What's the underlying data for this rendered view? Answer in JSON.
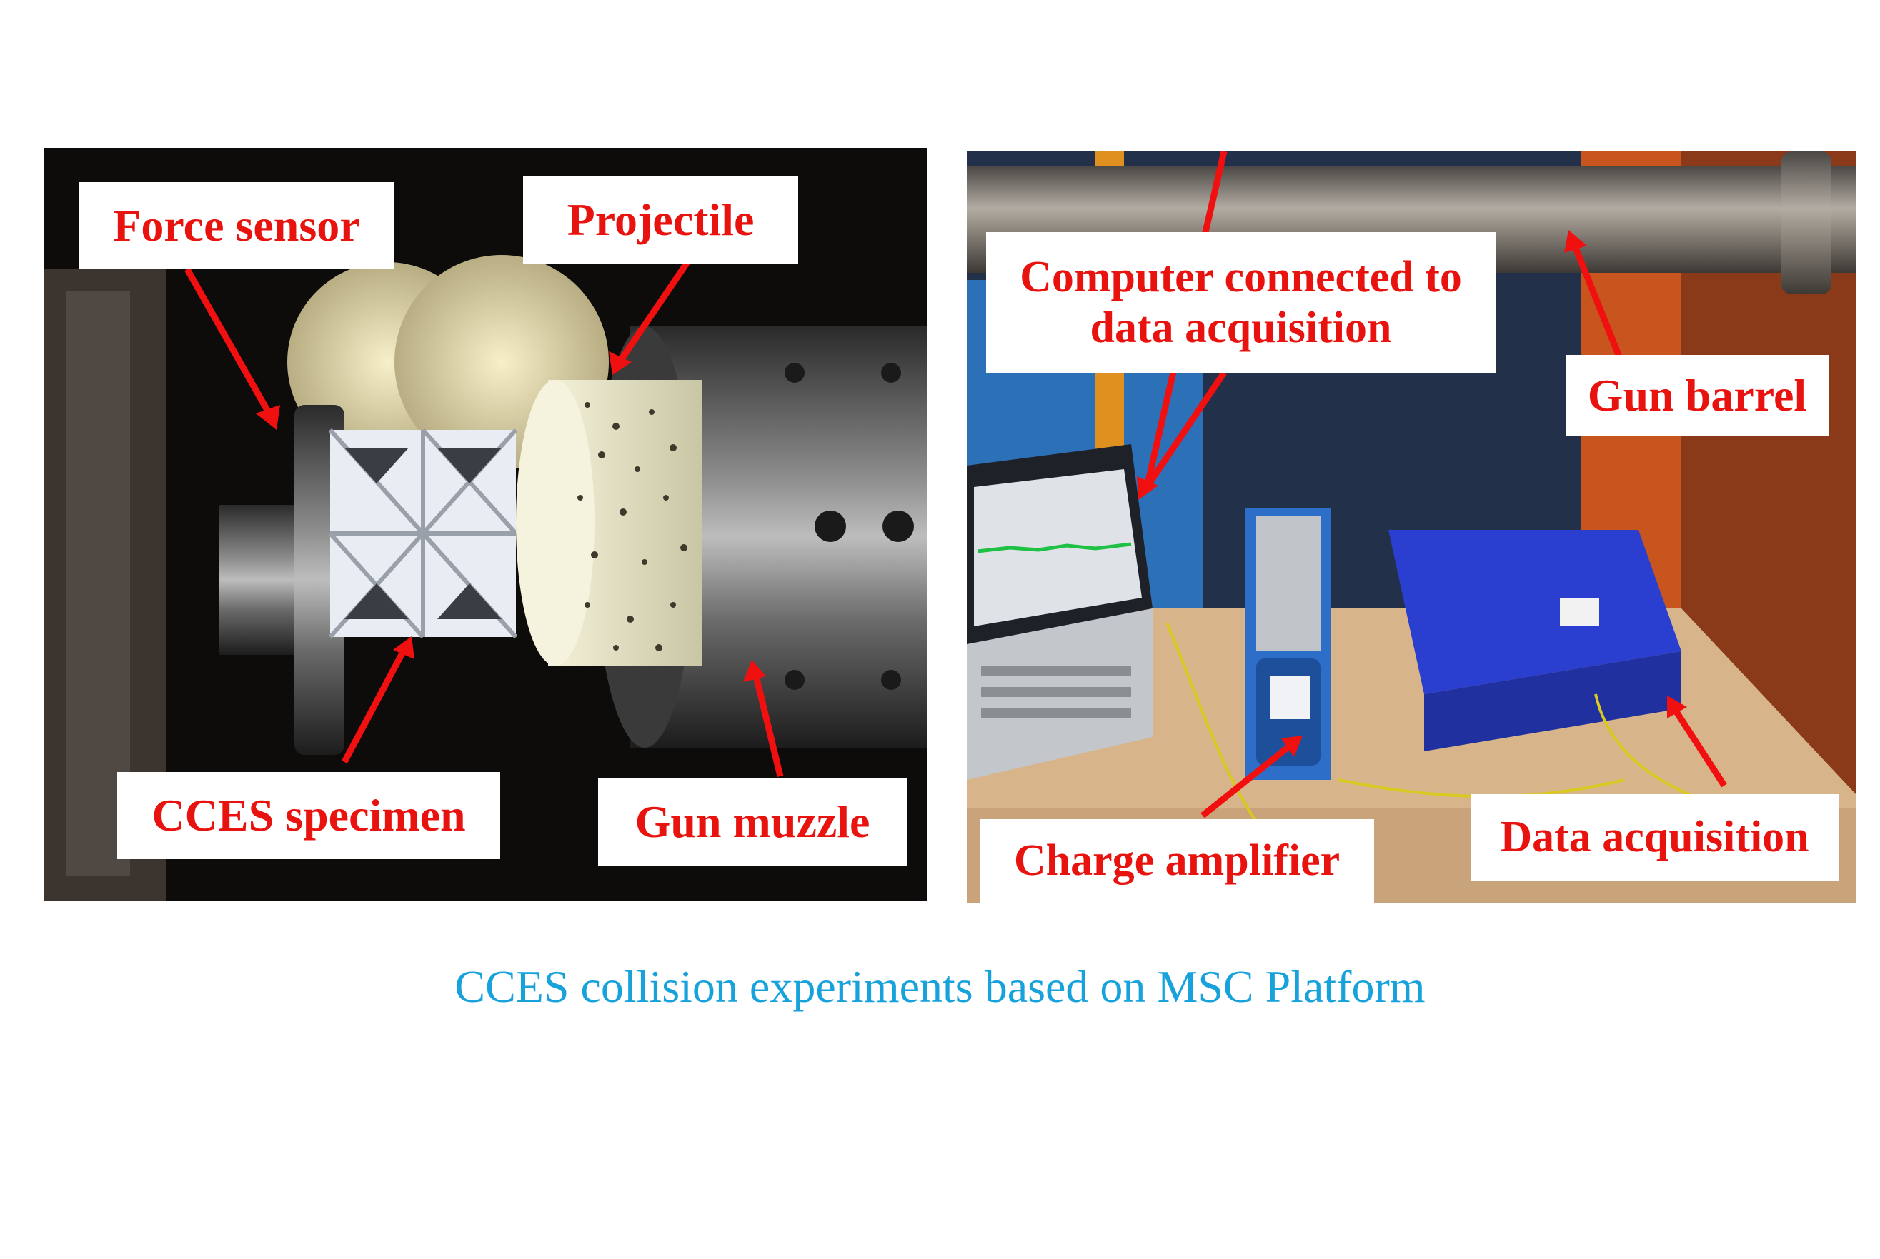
{
  "left_photo": {
    "labels": {
      "force_sensor": "Force sensor",
      "projectile": "Projectile",
      "cces_specimen": "CCES specimen",
      "gun_muzzle": "Gun muzzle"
    }
  },
  "right_photo": {
    "labels": {
      "computer_line1": "Computer connected to",
      "computer_line2": "data acquisition",
      "gun_barrel": "Gun barrel",
      "charge_amplifier": "Charge amplifier",
      "data_acquisition": "Data acquisition"
    }
  },
  "caption": "CCES collision experiments based on MSC Platform",
  "colors": {
    "label_text": "#e8130f",
    "arrow": "#f01010",
    "caption": "#18a2dc"
  }
}
